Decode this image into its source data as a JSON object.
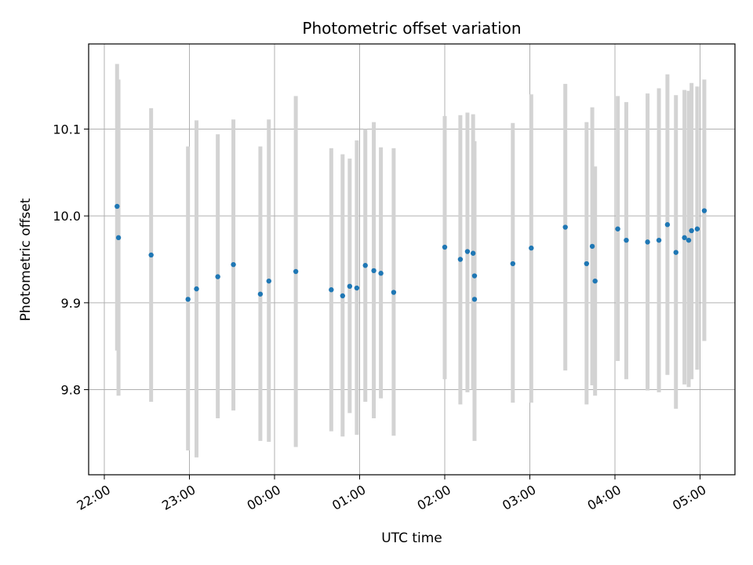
{
  "chart_data": {
    "type": "scatter",
    "title": "Photometric offset variation",
    "xlabel": "UTC time",
    "ylabel": "Photometric offset",
    "grid": true,
    "x_unit": "hours",
    "x_tick_labels": [
      "22:00",
      "23:00",
      "00:00",
      "01:00",
      "02:00",
      "03:00",
      "04:00",
      "05:00"
    ],
    "y_ticks": [
      9.8,
      9.9,
      10.0,
      10.1
    ],
    "y_tick_labels": [
      "9.8",
      "9.9",
      "10.0",
      "10.1"
    ],
    "ylim": [
      9.702,
      10.198
    ],
    "point_color": "#1f77b4",
    "errorbar_color": "#d3d3d3",
    "series": [
      {
        "x": [
          "22:09",
          "22:10",
          "22:33",
          "22:59",
          "23:05",
          "23:20",
          "23:31",
          "23:50",
          "23:56",
          "00:15",
          "00:40",
          "00:48",
          "00:53",
          "00:58",
          "01:04",
          "01:10",
          "01:15",
          "01:24",
          "02:00",
          "02:11",
          "02:16",
          "02:20",
          "02:21",
          "02:21",
          "02:48",
          "03:01",
          "03:25",
          "03:40",
          "03:44",
          "03:46",
          "04:02",
          "04:08",
          "04:23",
          "04:31",
          "04:37",
          "04:43",
          "04:49",
          "04:52",
          "04:54",
          "04:58",
          "05:03"
        ],
        "y": [
          10.011,
          9.975,
          9.955,
          9.904,
          9.916,
          9.93,
          9.944,
          9.91,
          9.925,
          9.936,
          9.915,
          9.908,
          9.919,
          9.917,
          9.943,
          9.937,
          9.934,
          9.912,
          9.964,
          9.95,
          9.959,
          9.957,
          9.931,
          9.904,
          9.945,
          9.963,
          9.987,
          9.945,
          9.965,
          9.925,
          9.985,
          9.972,
          9.97,
          9.972,
          9.99,
          9.958,
          9.975,
          9.972,
          9.983,
          9.985,
          10.006
        ],
        "y_low": [
          9.845,
          9.793,
          9.786,
          9.73,
          9.722,
          9.767,
          9.776,
          9.741,
          9.74,
          9.734,
          9.752,
          9.746,
          9.773,
          9.748,
          9.786,
          9.767,
          9.79,
          9.747,
          9.812,
          9.783,
          9.797,
          9.8,
          9.777,
          9.741,
          9.785,
          9.785,
          9.822,
          9.783,
          9.805,
          9.793,
          9.833,
          9.812,
          9.799,
          9.797,
          9.817,
          9.778,
          9.806,
          9.803,
          9.812,
          9.823,
          9.856
        ],
        "y_high": [
          10.175,
          10.157,
          10.124,
          10.08,
          10.11,
          10.094,
          10.111,
          10.08,
          10.111,
          10.138,
          10.078,
          10.071,
          10.066,
          10.087,
          10.1,
          10.108,
          10.079,
          10.078,
          10.115,
          10.116,
          10.119,
          10.117,
          10.086,
          10.067,
          10.107,
          10.14,
          10.152,
          10.108,
          10.125,
          10.057,
          10.138,
          10.131,
          10.141,
          10.147,
          10.163,
          10.139,
          10.145,
          10.144,
          10.153,
          10.149,
          10.157
        ]
      }
    ]
  }
}
